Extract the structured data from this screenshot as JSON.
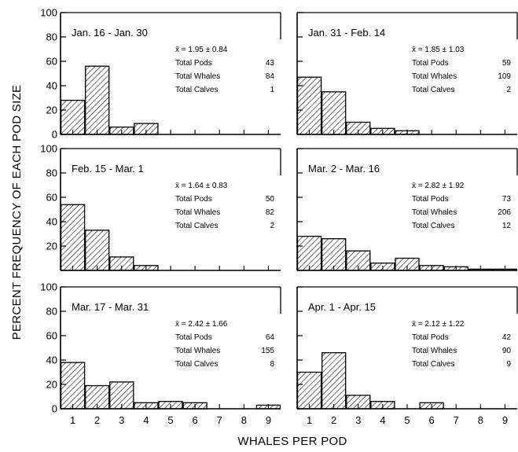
{
  "chart_data": {
    "type": "bar",
    "ylabel": "PERCENT FREQUENCY OF EACH POD SIZE",
    "xlabel": "WHALES PER POD",
    "ylim": [
      0,
      100
    ],
    "y_ticks": [
      "100",
      "80",
      "60",
      "40",
      "20",
      "0"
    ],
    "x_ticks": [
      "1",
      "2",
      "3",
      "4",
      "5",
      "6",
      "7",
      "8",
      "9"
    ],
    "bar_pattern": "diagonal-hatch",
    "panels": [
      {
        "title": "Jan. 16 - Jan. 30",
        "mean": "x̄ = 1.95 ± 0.84",
        "stats": [
          {
            "label": "Total Pods",
            "value": "43"
          },
          {
            "label": "Total Whales",
            "value": "84"
          },
          {
            "label": "Total Calves",
            "value": "1"
          }
        ],
        "categories": [
          1,
          2,
          3,
          4,
          5,
          6,
          7,
          8,
          9
        ],
        "values": [
          28,
          56,
          6,
          9,
          0,
          0,
          0,
          0,
          0
        ]
      },
      {
        "title": "Jan. 31 - Feb. 14",
        "mean": "x̄ = 1.85 ± 1.03",
        "stats": [
          {
            "label": "Total Pods",
            "value": "59"
          },
          {
            "label": "Total Whales",
            "value": "109"
          },
          {
            "label": "Total Calves",
            "value": "2"
          }
        ],
        "categories": [
          1,
          2,
          3,
          4,
          5,
          6,
          7,
          8,
          9
        ],
        "values": [
          47,
          35,
          10,
          5,
          3,
          0,
          0,
          0,
          0
        ]
      },
      {
        "title": "Feb. 15 - Mar. 1",
        "mean": "x̄ = 1.64 ± 0.83",
        "stats": [
          {
            "label": "Total Pods",
            "value": "50"
          },
          {
            "label": "Total Whales",
            "value": "82"
          },
          {
            "label": "Total Calves",
            "value": "2"
          }
        ],
        "categories": [
          1,
          2,
          3,
          4,
          5,
          6,
          7,
          8,
          9
        ],
        "values": [
          54,
          33,
          11,
          4,
          0,
          0,
          0,
          0,
          0
        ]
      },
      {
        "title": "Mar. 2 - Mar. 16",
        "mean": "x̄ = 2.82 ± 1.92",
        "stats": [
          {
            "label": "Total Pods",
            "value": "73"
          },
          {
            "label": "Total Whales",
            "value": "206"
          },
          {
            "label": "Total Calves",
            "value": "12"
          }
        ],
        "categories": [
          1,
          2,
          3,
          4,
          5,
          6,
          7,
          8,
          9
        ],
        "values": [
          28,
          26,
          16,
          6,
          10,
          4,
          3,
          1,
          1
        ]
      },
      {
        "title": "Mar. 17 - Mar. 31",
        "mean": "x̄ = 2.42 ± 1.66",
        "stats": [
          {
            "label": "Total Pods",
            "value": "64"
          },
          {
            "label": "Total Whales",
            "value": "155"
          },
          {
            "label": "Total Calves",
            "value": "8"
          }
        ],
        "categories": [
          1,
          2,
          3,
          4,
          5,
          6,
          7,
          8,
          9
        ],
        "values": [
          38,
          19,
          22,
          5,
          6,
          5,
          0,
          0,
          3
        ]
      },
      {
        "title": "Apr. 1 - Apr. 15",
        "mean": "x̄ = 2.12 ± 1.22",
        "stats": [
          {
            "label": "Total Pods",
            "value": "42"
          },
          {
            "label": "Total Whales",
            "value": "90"
          },
          {
            "label": "Total Calves",
            "value": "9"
          }
        ],
        "categories": [
          1,
          2,
          3,
          4,
          5,
          6,
          7,
          8,
          9
        ],
        "values": [
          30,
          46,
          11,
          6,
          0,
          5,
          0,
          0,
          0
        ]
      }
    ]
  }
}
